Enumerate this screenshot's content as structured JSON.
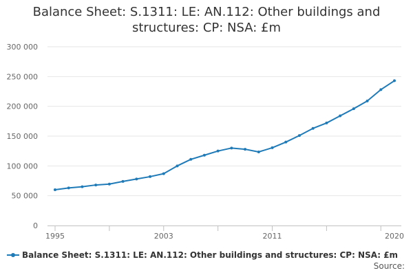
{
  "chart_data": {
    "type": "line",
    "title": "Balance Sheet: S.1311: LE: AN.112: Other buildings and structures: CP: NSA: £m",
    "xlabel": "",
    "ylabel": "",
    "x": [
      1995,
      1996,
      1997,
      1998,
      1999,
      2000,
      2001,
      2002,
      2003,
      2004,
      2005,
      2006,
      2007,
      2008,
      2009,
      2010,
      2011,
      2012,
      2013,
      2014,
      2015,
      2016,
      2017,
      2018,
      2019,
      2020
    ],
    "x_ticks": [
      "1995",
      "2003",
      "2011",
      "2020"
    ],
    "y_ticks": [
      "0",
      "50 000",
      "100 000",
      "150 000",
      "200 000",
      "250 000",
      "300 000"
    ],
    "ylim": [
      0,
      300000
    ],
    "grid": true,
    "legend_position": "bottom-left",
    "series": [
      {
        "name": "Balance Sheet: S.1311: LE: AN.112: Other buildings and structures: CP: NSA: £m",
        "color": "#1f7ab8",
        "values": [
          60000,
          63000,
          65000,
          68000,
          69500,
          74000,
          78000,
          82000,
          87000,
          100000,
          111000,
          118000,
          125000,
          130000,
          128000,
          123500,
          130500,
          140000,
          151000,
          163000,
          172000,
          184000,
          196000,
          209000,
          228000,
          243000
        ]
      }
    ]
  },
  "footer": {
    "source": "Source:"
  }
}
